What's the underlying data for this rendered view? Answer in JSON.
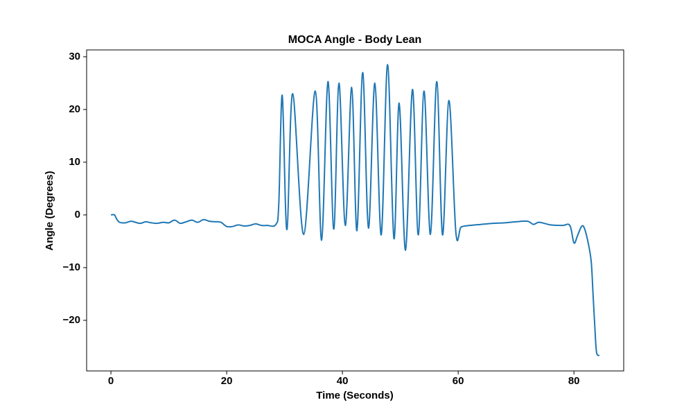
{
  "chart_data": {
    "type": "line",
    "title": "MOCA Angle - Body Lean",
    "xlabel": "Time (Seconds)",
    "ylabel": "Angle (Degrees)",
    "xlim": [
      -4.2,
      88.6
    ],
    "ylim": [
      -29.6,
      31.3
    ],
    "xticks": [
      0,
      20,
      40,
      60,
      80
    ],
    "yticks": [
      {
        "value": -20,
        "label": "−20"
      },
      {
        "value": -10,
        "label": "−10"
      },
      0,
      10,
      20,
      30
    ],
    "grid": false,
    "series": [
      {
        "name": "Angle",
        "color": "#1f77b4",
        "x": [
          0,
          0.6,
          1.0,
          1.5,
          2.5,
          3.5,
          5,
          6,
          7,
          8,
          9,
          10,
          11,
          12,
          13,
          14,
          15,
          16,
          17,
          18,
          19,
          20,
          21,
          22,
          23,
          24,
          25,
          26,
          27,
          28.5,
          29.0,
          29.6,
          30.4,
          31.4,
          33.3,
          35.3,
          36.4,
          37.5,
          38.5,
          39.4,
          40.5,
          41.6,
          42.5,
          43.5,
          44.5,
          45.6,
          46.7,
          47.8,
          48.9,
          49.8,
          50.9,
          52.1,
          53.1,
          54.1,
          55.2,
          56.3,
          57.3,
          58.4,
          59.6,
          60.5,
          62,
          64,
          66,
          68,
          70,
          72,
          73,
          74,
          76,
          78,
          79.3,
          80.0,
          80.6,
          81.3,
          81.8,
          82.5,
          83.0,
          83.3,
          83.6,
          83.9,
          84.4
        ],
        "values": [
          0,
          0,
          -0.8,
          -1.4,
          -1.5,
          -1.2,
          -1.6,
          -1.3,
          -1.5,
          -1.6,
          -1.4,
          -1.5,
          -1.0,
          -1.6,
          -1.3,
          -1.0,
          -1.4,
          -0.9,
          -1.2,
          -1.3,
          -1.4,
          -2.2,
          -2.2,
          -1.9,
          -2.1,
          -2.0,
          -1.7,
          -2.0,
          -2.0,
          -1.8,
          2.0,
          22.7,
          -2.8,
          23.0,
          -3.7,
          23.5,
          -4.8,
          25.3,
          -2.7,
          25.0,
          -2.0,
          24.2,
          -3.0,
          27.0,
          -2.5,
          25.0,
          -3.8,
          28.5,
          -4.5,
          21.2,
          -6.7,
          23.8,
          -3.8,
          23.5,
          -3.7,
          25.3,
          -3.8,
          21.7,
          -3.3,
          -2.3,
          -2.0,
          -1.8,
          -1.6,
          -1.5,
          -1.3,
          -1.2,
          -1.8,
          -1.4,
          -1.9,
          -2.0,
          -2.0,
          -5.3,
          -4.0,
          -2.2,
          -2.5,
          -5.5,
          -9.0,
          -15.0,
          -21.0,
          -26.0,
          -26.7
        ]
      }
    ]
  }
}
